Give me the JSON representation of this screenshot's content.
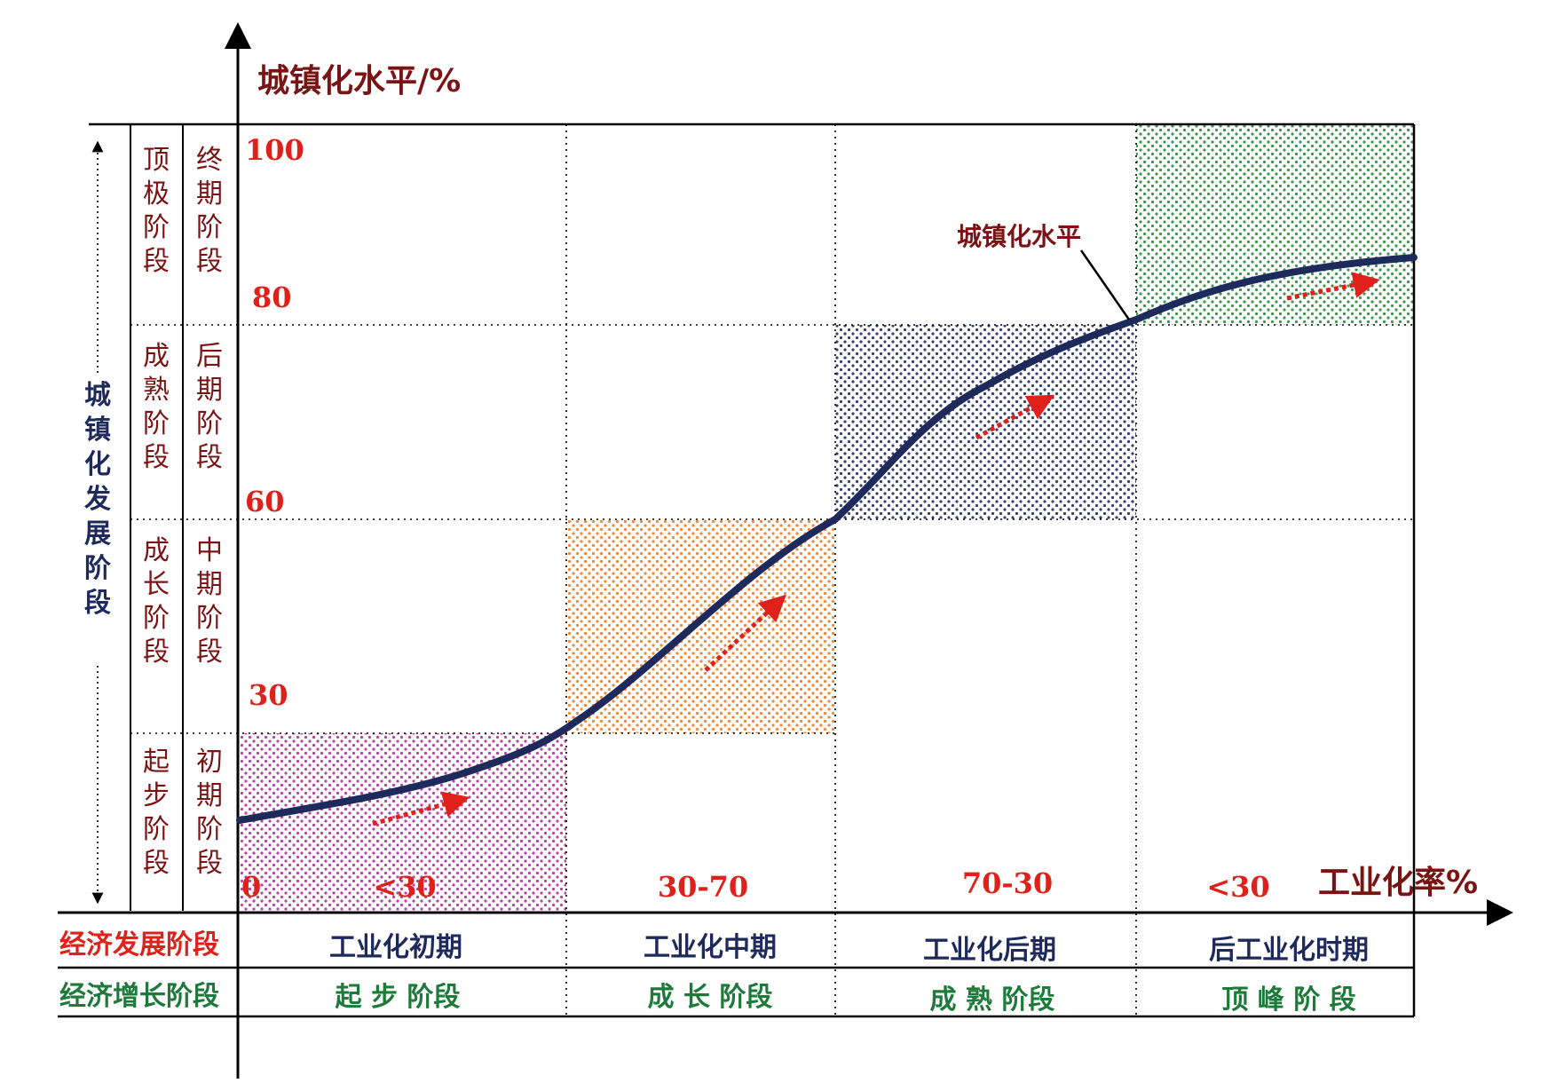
{
  "axes": {
    "y_title": "城镇化水平/%",
    "x_title": "工业化率%",
    "y_ticks": [
      "0",
      "30",
      "60",
      "80",
      "100"
    ]
  },
  "curve_label": "城镇化水平",
  "left_header": {
    "title": "城镇化发展阶段",
    "col1": [
      "顶极阶段",
      "成熟阶段",
      "成长阶段",
      "起步阶段"
    ],
    "col2": [
      "终期阶段",
      "后期阶段",
      "中期阶段",
      "初期阶段"
    ]
  },
  "x_categories": [
    "<30",
    "30-70",
    "70-30",
    "<30"
  ],
  "bottom_table": {
    "row1_label": "经济发展阶段",
    "row2_label": "经济增长阶段",
    "row1": [
      "工业化初期",
      "工业化中期",
      "工业化后期",
      "后工业化时期"
    ],
    "row2": [
      "起 步 阶段",
      "成 长 阶段",
      "成 熟 阶段",
      "顶 峰 阶 段"
    ]
  },
  "colors": {
    "curve": "#1f2a5c",
    "tick_red": "#e0201a",
    "title_dark_red": "#7a1414",
    "label_navy": "#1f2a5c",
    "label_green": "#1e7a3a",
    "stage1_dots": "#b0309a",
    "stage2_dots": "#f07a20",
    "stage3_dots": "#1f2a5c",
    "stage4_dots": "#2a8a3a"
  }
}
